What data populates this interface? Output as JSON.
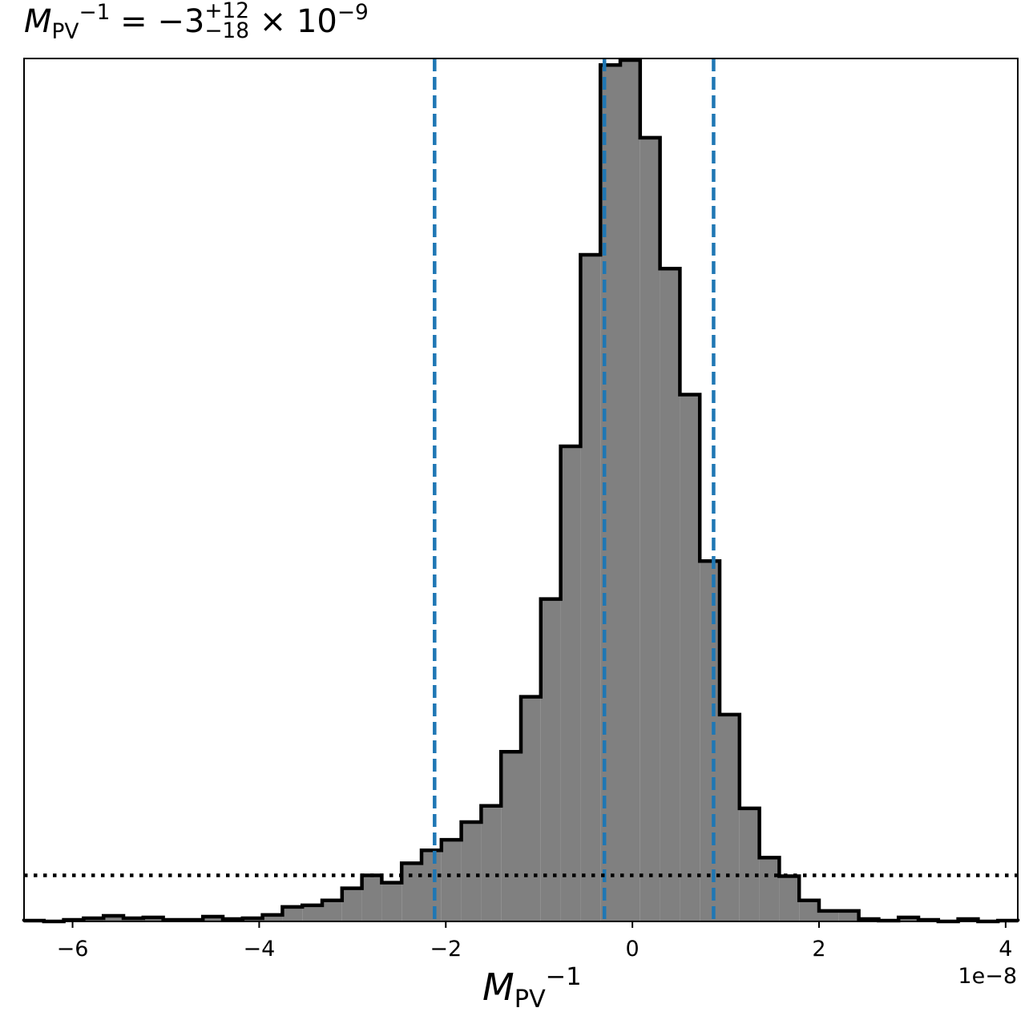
{
  "chart_data": {
    "type": "histogram",
    "title": {
      "symbol": "M",
      "sub": "PV",
      "sup": "−1",
      "equals": " = −3",
      "upper_err": "+12",
      "lower_err": "−18",
      "exponent_text": " × 10",
      "exponent": "−9"
    },
    "xlabel": {
      "symbol": "M",
      "sub": "PV",
      "sup": "−1"
    },
    "ylabel": "",
    "axis_offset_label": "1e−8",
    "xlim": [
      -6.52,
      4.13
    ],
    "ylim": [
      0,
      1068
    ],
    "xticks": [
      -6,
      -4,
      -2,
      0,
      2,
      4
    ],
    "xtick_labels": [
      "−6",
      "−4",
      "−2",
      "0",
      "2",
      "4"
    ],
    "yticks_visible": false,
    "grid": false,
    "bin_edges": [
      -6.52,
      -6.307,
      -6.094,
      -5.881,
      -5.668,
      -5.455,
      -5.242,
      -5.029,
      -4.816,
      -4.603,
      -4.39,
      -4.177,
      -3.964,
      -3.751,
      -3.538,
      -3.325,
      -3.112,
      -2.899,
      -2.686,
      -2.473,
      -2.26,
      -2.047,
      -1.834,
      -1.621,
      -1.408,
      -1.195,
      -0.982,
      -0.769,
      -0.556,
      -0.343,
      -0.13,
      0.083,
      0.296,
      0.509,
      0.722,
      0.935,
      1.148,
      1.361,
      1.574,
      1.787,
      2.0,
      2.213,
      2.426,
      2.639,
      2.852,
      3.065,
      3.278,
      3.491,
      3.704,
      3.917,
      4.13
    ],
    "counts": [
      1,
      0,
      2,
      4,
      7,
      4,
      5,
      2,
      2,
      6,
      3,
      4,
      8,
      18,
      20,
      26,
      41,
      57,
      48,
      72,
      88,
      101,
      123,
      143,
      210,
      278,
      399,
      588,
      825,
      1060,
      1066,
      970,
      808,
      652,
      446,
      256,
      140,
      79,
      56,
      26,
      13,
      13,
      3,
      1,
      5,
      2,
      0,
      3,
      0,
      1
    ],
    "hist_style": {
      "fill": "#808080",
      "edge": "#000000"
    },
    "vlines": {
      "values": [
        -2.12,
        -0.3,
        0.87
      ],
      "style": "dashed",
      "color": "#1f77b4"
    },
    "hline": {
      "value": 57,
      "style": "dotted",
      "color": "#000000"
    }
  }
}
